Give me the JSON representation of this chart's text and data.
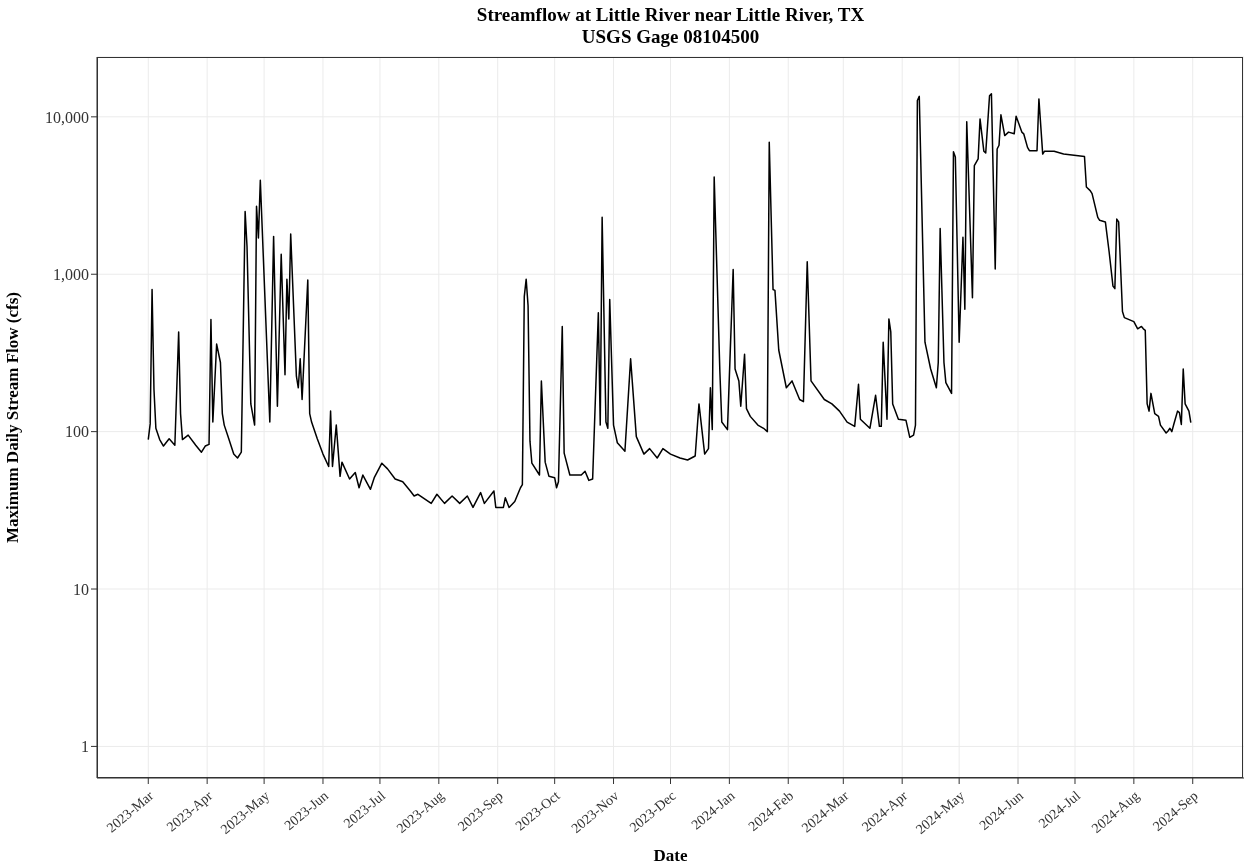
{
  "chart_data": {
    "type": "line",
    "title": "Streamflow at Little River near Little River, TX",
    "subtitle": "USGS Gage 08104500",
    "xlabel": "Date",
    "ylabel": "Maximum Daily Stream Flow (cfs)",
    "log": "y",
    "grid": true,
    "legend": false,
    "marker": "none",
    "line_style": "solid",
    "xlim": [
      "2023-02-02",
      "2024-09-28"
    ],
    "xticks": [
      {
        "value": "2023-03-01",
        "label": "2023-Mar"
      },
      {
        "value": "2023-04-01",
        "label": "2023-Apr"
      },
      {
        "value": "2023-05-01",
        "label": "2023-May"
      },
      {
        "value": "2023-06-01",
        "label": "2023-Jun"
      },
      {
        "value": "2023-07-01",
        "label": "2023-Jul"
      },
      {
        "value": "2023-08-01",
        "label": "2023-Aug"
      },
      {
        "value": "2023-09-01",
        "label": "2023-Sep"
      },
      {
        "value": "2023-10-01",
        "label": "2023-Oct"
      },
      {
        "value": "2023-11-01",
        "label": "2023-Nov"
      },
      {
        "value": "2023-12-01",
        "label": "2023-Dec"
      },
      {
        "value": "2024-01-01",
        "label": "2024-Jan"
      },
      {
        "value": "2024-02-01",
        "label": "2024-Feb"
      },
      {
        "value": "2024-03-01",
        "label": "2024-Mar"
      },
      {
        "value": "2024-04-01",
        "label": "2024-Apr"
      },
      {
        "value": "2024-05-01",
        "label": "2024-May"
      },
      {
        "value": "2024-06-01",
        "label": "2024-Jun"
      },
      {
        "value": "2024-07-01",
        "label": "2024-Jul"
      },
      {
        "value": "2024-08-01",
        "label": "2024-Aug"
      },
      {
        "value": "2024-09-01",
        "label": "2024-Sep"
      }
    ],
    "ylim": [
      0.63,
      24000
    ],
    "yticks": [
      1,
      10,
      100,
      {
        "value": 1000,
        "label": "1,000"
      },
      {
        "value": 10000,
        "label": "10,000"
      }
    ],
    "series": [
      {
        "color": "#000000",
        "x": [
          "2023-03-01",
          "2023-03-02",
          "2023-03-03",
          "2023-03-04",
          "2023-03-05",
          "2023-03-07",
          "2023-03-09",
          "2023-03-12",
          "2023-03-15",
          "2023-03-17",
          "2023-03-18",
          "2023-03-19",
          "2023-03-22",
          "2023-03-26",
          "2023-03-29",
          "2023-03-31",
          "2023-04-02",
          "2023-04-03",
          "2023-04-04",
          "2023-04-06",
          "2023-04-08",
          "2023-04-09",
          "2023-04-10",
          "2023-04-12",
          "2023-04-15",
          "2023-04-17",
          "2023-04-19",
          "2023-04-21",
          "2023-04-22",
          "2023-04-24",
          "2023-04-26",
          "2023-04-27",
          "2023-04-28",
          "2023-04-29",
          "2023-05-04",
          "2023-05-06",
          "2023-05-08",
          "2023-05-10",
          "2023-05-12",
          "2023-05-13",
          "2023-05-14",
          "2023-05-15",
          "2023-05-18",
          "2023-05-19",
          "2023-05-20",
          "2023-05-21",
          "2023-05-24",
          "2023-05-25",
          "2023-05-26",
          "2023-05-29",
          "2023-06-01",
          "2023-06-04",
          "2023-06-05",
          "2023-06-06",
          "2023-06-08",
          "2023-06-10",
          "2023-06-11",
          "2023-06-15",
          "2023-06-18",
          "2023-06-20",
          "2023-06-22",
          "2023-06-26",
          "2023-06-28",
          "2023-07-02",
          "2023-07-05",
          "2023-07-09",
          "2023-07-13",
          "2023-07-17",
          "2023-07-19",
          "2023-07-21",
          "2023-07-28",
          "2023-07-31",
          "2023-08-04",
          "2023-08-08",
          "2023-08-12",
          "2023-08-16",
          "2023-08-19",
          "2023-08-23",
          "2023-08-25",
          "2023-08-30",
          "2023-08-31",
          "2023-09-04",
          "2023-09-05",
          "2023-09-07",
          "2023-09-10",
          "2023-09-13",
          "2023-09-14",
          "2023-09-15",
          "2023-09-16",
          "2023-09-17",
          "2023-09-18",
          "2023-09-19",
          "2023-09-23",
          "2023-09-24",
          "2023-09-26",
          "2023-09-28",
          "2023-10-01",
          "2023-10-02",
          "2023-10-03",
          "2023-10-05",
          "2023-10-06",
          "2023-10-09",
          "2023-10-15",
          "2023-10-17",
          "2023-10-19",
          "2023-10-21",
          "2023-10-24",
          "2023-10-25",
          "2023-10-26",
          "2023-10-28",
          "2023-10-29",
          "2023-10-30",
          "2023-11-01",
          "2023-11-03",
          "2023-11-07",
          "2023-11-10",
          "2023-11-13",
          "2023-11-17",
          "2023-11-20",
          "2023-11-24",
          "2023-11-27",
          "2023-12-01",
          "2023-12-06",
          "2023-12-10",
          "2023-12-14",
          "2023-12-16",
          "2023-12-19",
          "2023-12-21",
          "2023-12-22",
          "2023-12-23",
          "2023-12-24",
          "2023-12-27",
          "2023-12-28",
          "2023-12-31",
          "2024-01-03",
          "2024-01-04",
          "2024-01-06",
          "2024-01-07",
          "2024-01-09",
          "2024-01-10",
          "2024-01-12",
          "2024-01-16",
          "2024-01-19",
          "2024-01-21",
          "2024-01-22",
          "2024-01-24",
          "2024-01-25",
          "2024-01-27",
          "2024-01-31",
          "2024-02-03",
          "2024-02-07",
          "2024-02-09",
          "2024-02-11",
          "2024-02-13",
          "2024-02-20",
          "2024-02-24",
          "2024-02-28",
          "2024-03-03",
          "2024-03-07",
          "2024-03-09",
          "2024-03-10",
          "2024-03-15",
          "2024-03-18",
          "2024-03-20",
          "2024-03-21",
          "2024-03-22",
          "2024-03-24",
          "2024-03-25",
          "2024-03-26",
          "2024-03-27",
          "2024-03-30",
          "2024-04-03",
          "2024-04-05",
          "2024-04-07",
          "2024-04-08",
          "2024-04-09",
          "2024-04-10",
          "2024-04-13",
          "2024-04-16",
          "2024-04-19",
          "2024-04-20",
          "2024-04-21",
          "2024-04-23",
          "2024-04-24",
          "2024-04-27",
          "2024-04-28",
          "2024-04-29",
          "2024-05-01",
          "2024-05-03",
          "2024-05-04",
          "2024-05-05",
          "2024-05-08",
          "2024-05-09",
          "2024-05-11",
          "2024-05-12",
          "2024-05-14",
          "2024-05-15",
          "2024-05-17",
          "2024-05-18",
          "2024-05-20",
          "2024-05-21",
          "2024-05-22",
          "2024-05-23",
          "2024-05-25",
          "2024-05-27",
          "2024-05-30",
          "2024-05-31",
          "2024-06-03",
          "2024-06-04",
          "2024-06-06",
          "2024-06-07",
          "2024-06-11",
          "2024-06-12",
          "2024-06-14",
          "2024-06-15",
          "2024-06-20",
          "2024-06-25",
          "2024-07-06",
          "2024-07-07",
          "2024-07-09",
          "2024-07-10",
          "2024-07-13",
          "2024-07-14",
          "2024-07-17",
          "2024-07-19",
          "2024-07-21",
          "2024-07-22",
          "2024-07-23",
          "2024-07-24",
          "2024-07-26",
          "2024-07-27",
          "2024-08-01",
          "2024-08-03",
          "2024-08-05",
          "2024-08-06",
          "2024-08-07",
          "2024-08-08",
          "2024-08-09",
          "2024-08-10",
          "2024-08-12",
          "2024-08-14",
          "2024-08-15",
          "2024-08-18",
          "2024-08-19",
          "2024-08-20",
          "2024-08-21",
          "2024-08-22",
          "2024-08-24",
          "2024-08-25",
          "2024-08-26",
          "2024-08-27",
          "2024-08-28",
          "2024-08-30",
          "2024-08-31"
        ],
        "values": [
          89,
          112,
          800,
          185,
          105,
          89,
          81,
          90,
          82,
          430,
          130,
          89,
          95,
          82,
          74,
          81,
          83,
          515,
          115,
          360,
          275,
          130,
          110,
          93,
          72,
          68,
          74,
          2500,
          1500,
          150,
          110,
          2700,
          1700,
          3950,
          115,
          1740,
          145,
          1340,
          230,
          930,
          520,
          1800,
          225,
          190,
          290,
          160,
          920,
          130,
          115,
          90,
          72,
          60,
          135,
          60,
          110,
          52,
          64,
          50,
          55,
          44,
          53,
          43,
          51,
          63,
          58,
          50,
          48,
          42,
          39,
          40,
          35,
          40,
          35,
          39,
          35,
          39,
          33,
          41,
          35,
          42,
          33,
          33,
          38,
          33,
          36,
          44,
          46,
          720,
          930,
          630,
          87,
          63,
          53,
          210,
          64,
          52,
          51,
          44,
          48,
          465,
          73,
          53,
          53,
          56,
          49,
          50,
          570,
          110,
          2300,
          115,
          105,
          690,
          110,
          85,
          75,
          290,
          93,
          72,
          78,
          68,
          78,
          72,
          68,
          66,
          70,
          150,
          72,
          78,
          190,
          103,
          4150,
          240,
          115,
          103,
          1070,
          250,
          210,
          145,
          310,
          140,
          125,
          110,
          105,
          100,
          6900,
          800,
          790,
          330,
          190,
          210,
          160,
          155,
          1200,
          210,
          160,
          150,
          135,
          115,
          108,
          200,
          120,
          105,
          170,
          108,
          108,
          370,
          120,
          520,
          430,
          150,
          120,
          118,
          92,
          95,
          110,
          12700,
          13500,
          370,
          250,
          190,
          275,
          1950,
          275,
          205,
          175,
          6000,
          5550,
          370,
          1720,
          600,
          9300,
          710,
          4900,
          5400,
          9700,
          6050,
          5900,
          13600,
          14000,
          1080,
          6250,
          6600,
          10300,
          7600,
          8000,
          7800,
          10100,
          8000,
          7800,
          6400,
          6100,
          6100,
          13000,
          5800,
          6050,
          6050,
          5800,
          5600,
          3580,
          3400,
          3250,
          2300,
          2200,
          2150,
          1380,
          840,
          810,
          2240,
          2150,
          580,
          530,
          500,
          450,
          466,
          450,
          440,
          150,
          135,
          175,
          130,
          125,
          110,
          98,
          101,
          105,
          100,
          111,
          135,
          132,
          111,
          250,
          150,
          135,
          114
        ]
      }
    ]
  }
}
